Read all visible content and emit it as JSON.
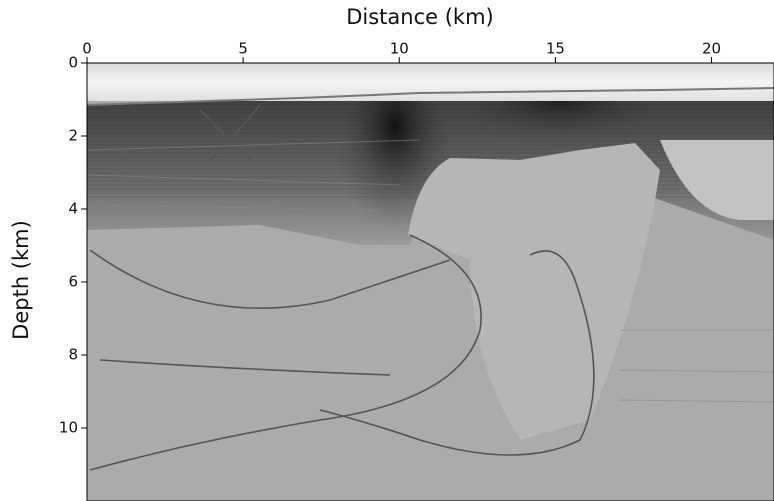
{
  "chart_data": {
    "type": "image",
    "xlabel": "Distance (km)",
    "ylabel": "Depth (km)",
    "xlim": [
      0,
      22
    ],
    "ylim": [
      0,
      12
    ],
    "xticks": [
      0,
      5,
      10,
      15,
      20
    ],
    "yticks": [
      0,
      2,
      4,
      6,
      8,
      10
    ],
    "x_axis_position": "top",
    "y_inverted": true,
    "colormap": "gray"
  }
}
